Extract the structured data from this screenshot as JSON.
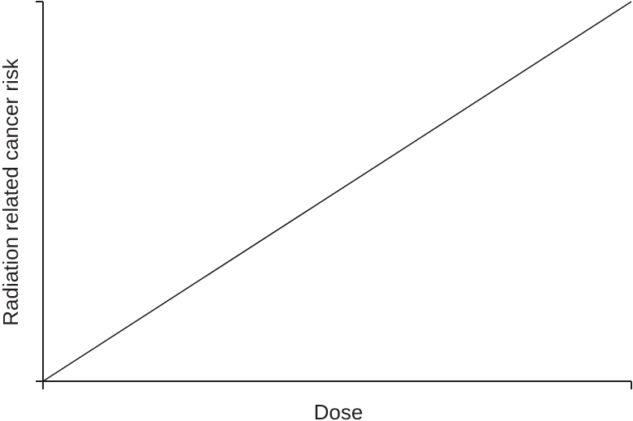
{
  "chart_data": {
    "type": "line",
    "title": "",
    "xlabel": "Dose",
    "ylabel": "Radiation related cancer risk",
    "xlim": [
      0,
      1
    ],
    "ylim": [
      0,
      1
    ],
    "grid": false,
    "series": [
      {
        "x": [
          0,
          1
        ],
        "y": [
          0,
          1
        ]
      }
    ],
    "colors": {
      "line": "#231f20",
      "axis": "#231f20"
    }
  }
}
